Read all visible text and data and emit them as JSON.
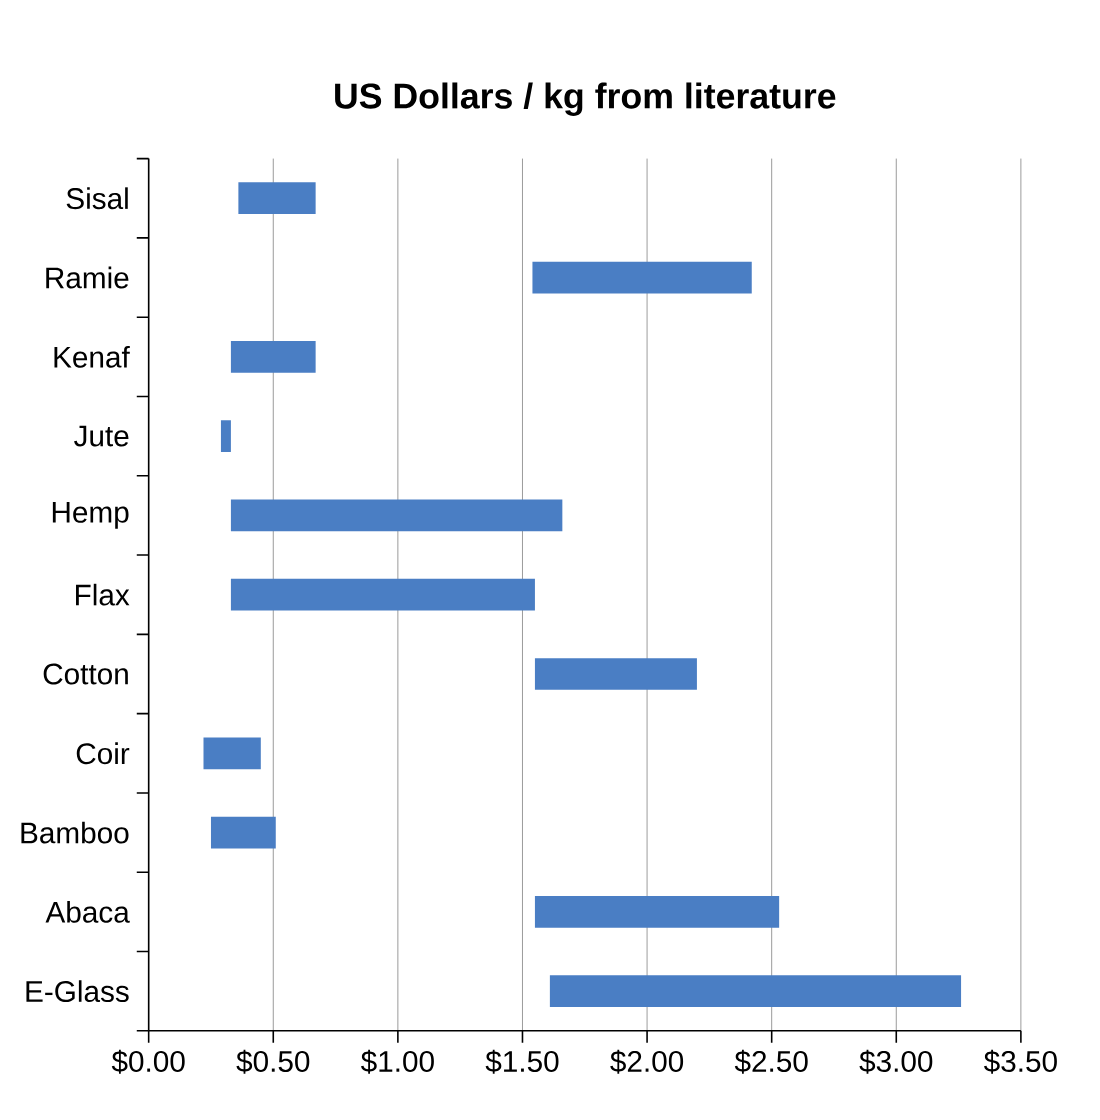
{
  "chart_data": {
    "type": "bar",
    "orientation": "horizontal",
    "title": "US Dollars / kg from literature",
    "categories": [
      "Sisal",
      "Ramie",
      "Kenaf",
      "Jute",
      "Hemp",
      "Flax",
      "Cotton",
      "Coir",
      "Bamboo",
      "Abaca",
      "E-Glass"
    ],
    "base": [
      0.36,
      1.54,
      0.33,
      0.29,
      0.33,
      0.33,
      1.55,
      0.22,
      0.25,
      1.55,
      1.61
    ],
    "values": [
      0.31,
      0.88,
      0.34,
      0.04,
      1.33,
      1.22,
      0.65,
      0.23,
      0.26,
      0.98,
      1.65
    ],
    "color": "#4a7ec4",
    "xlim": [
      0,
      3.5
    ],
    "xticks": [
      {
        "value": 0,
        "label": "$0.00"
      },
      {
        "value": 0.5,
        "label": "$0.50"
      },
      {
        "value": 1,
        "label": "$1.00"
      },
      {
        "value": 1.5,
        "label": "$1.50"
      },
      {
        "value": 2,
        "label": "$2.00"
      },
      {
        "value": 2.5,
        "label": "$2.50"
      },
      {
        "value": 3,
        "label": "$3.00"
      },
      {
        "value": 3.5,
        "label": "$3.50"
      }
    ],
    "grid": "x"
  }
}
